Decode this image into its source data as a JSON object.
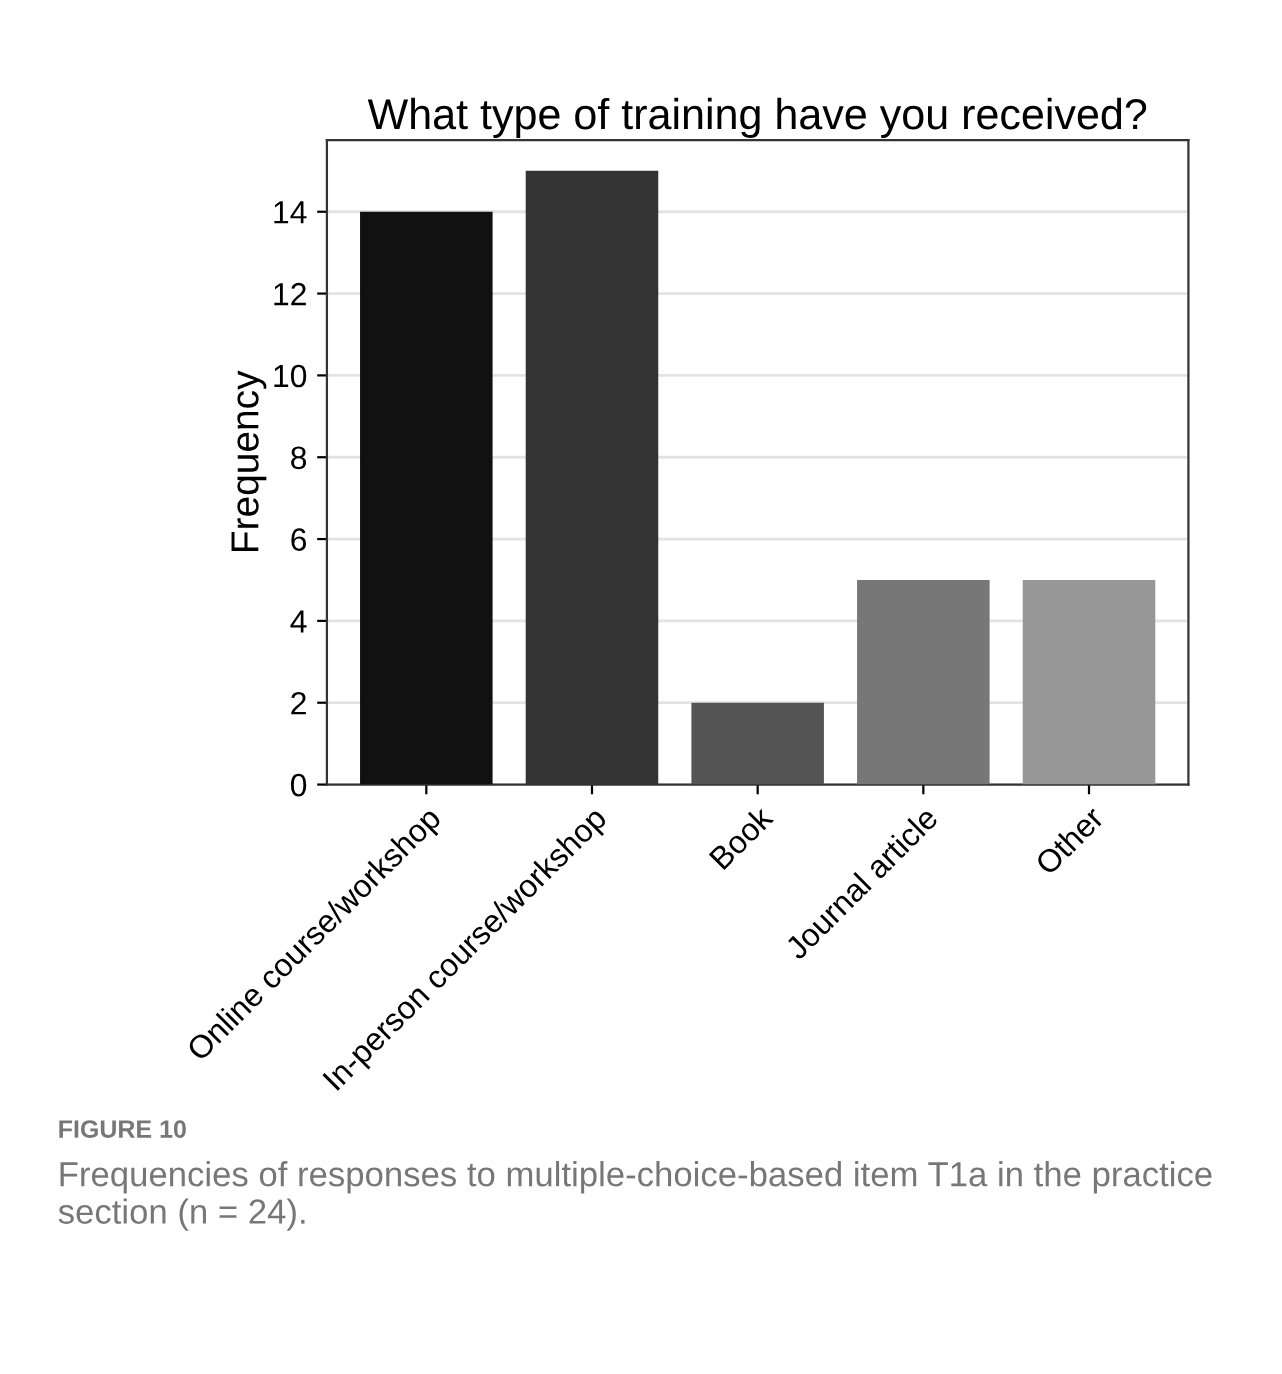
{
  "chart_data": {
    "type": "bar",
    "title": "What type of training have you received?",
    "ylabel": "Frequency",
    "categories": [
      "Online course/workshop",
      "In-person course/workshop",
      "Book",
      "Journal article",
      "Other"
    ],
    "values": [
      14,
      15,
      2,
      5,
      5
    ],
    "colors": [
      "#111111",
      "#333333",
      "#545454",
      "#777777",
      "#979797"
    ],
    "ylim": [
      0,
      15.75
    ],
    "yticks": [
      0,
      2,
      4,
      6,
      8,
      10,
      12,
      14
    ],
    "grid": "y",
    "annotations": [
      "FIGURE 10",
      "Frequencies of responses to multiple-choice-based item T1a in the practice section (n = 24)."
    ]
  }
}
